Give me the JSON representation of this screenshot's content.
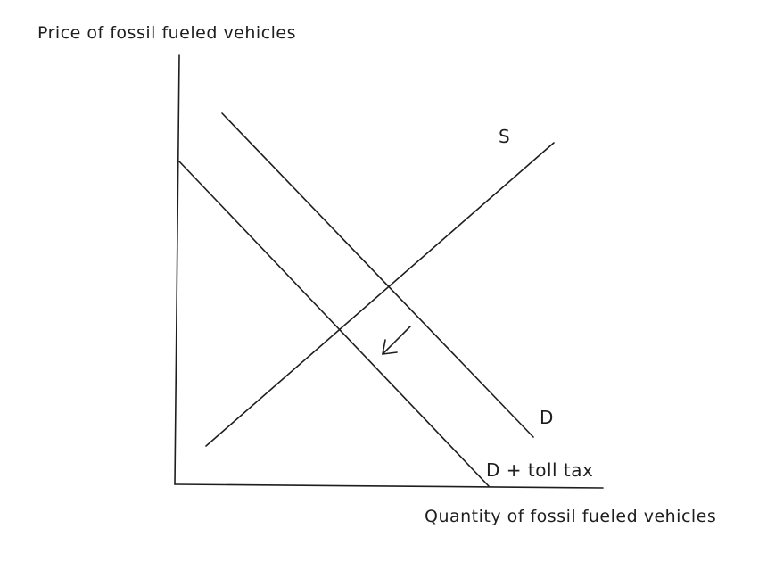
{
  "axes": {
    "y_title": "Price of fossil fueled vehicles",
    "x_title": "Quantity of fossil fueled vehicles"
  },
  "curves": {
    "supply_label": "S",
    "demand_label": "D",
    "demand_tax_label": "D + toll tax"
  },
  "colors": {
    "ink": "#1e1e1e",
    "background": "#ffffff"
  },
  "annotations": {
    "shift_arrow": "arrow-down-left-icon"
  }
}
